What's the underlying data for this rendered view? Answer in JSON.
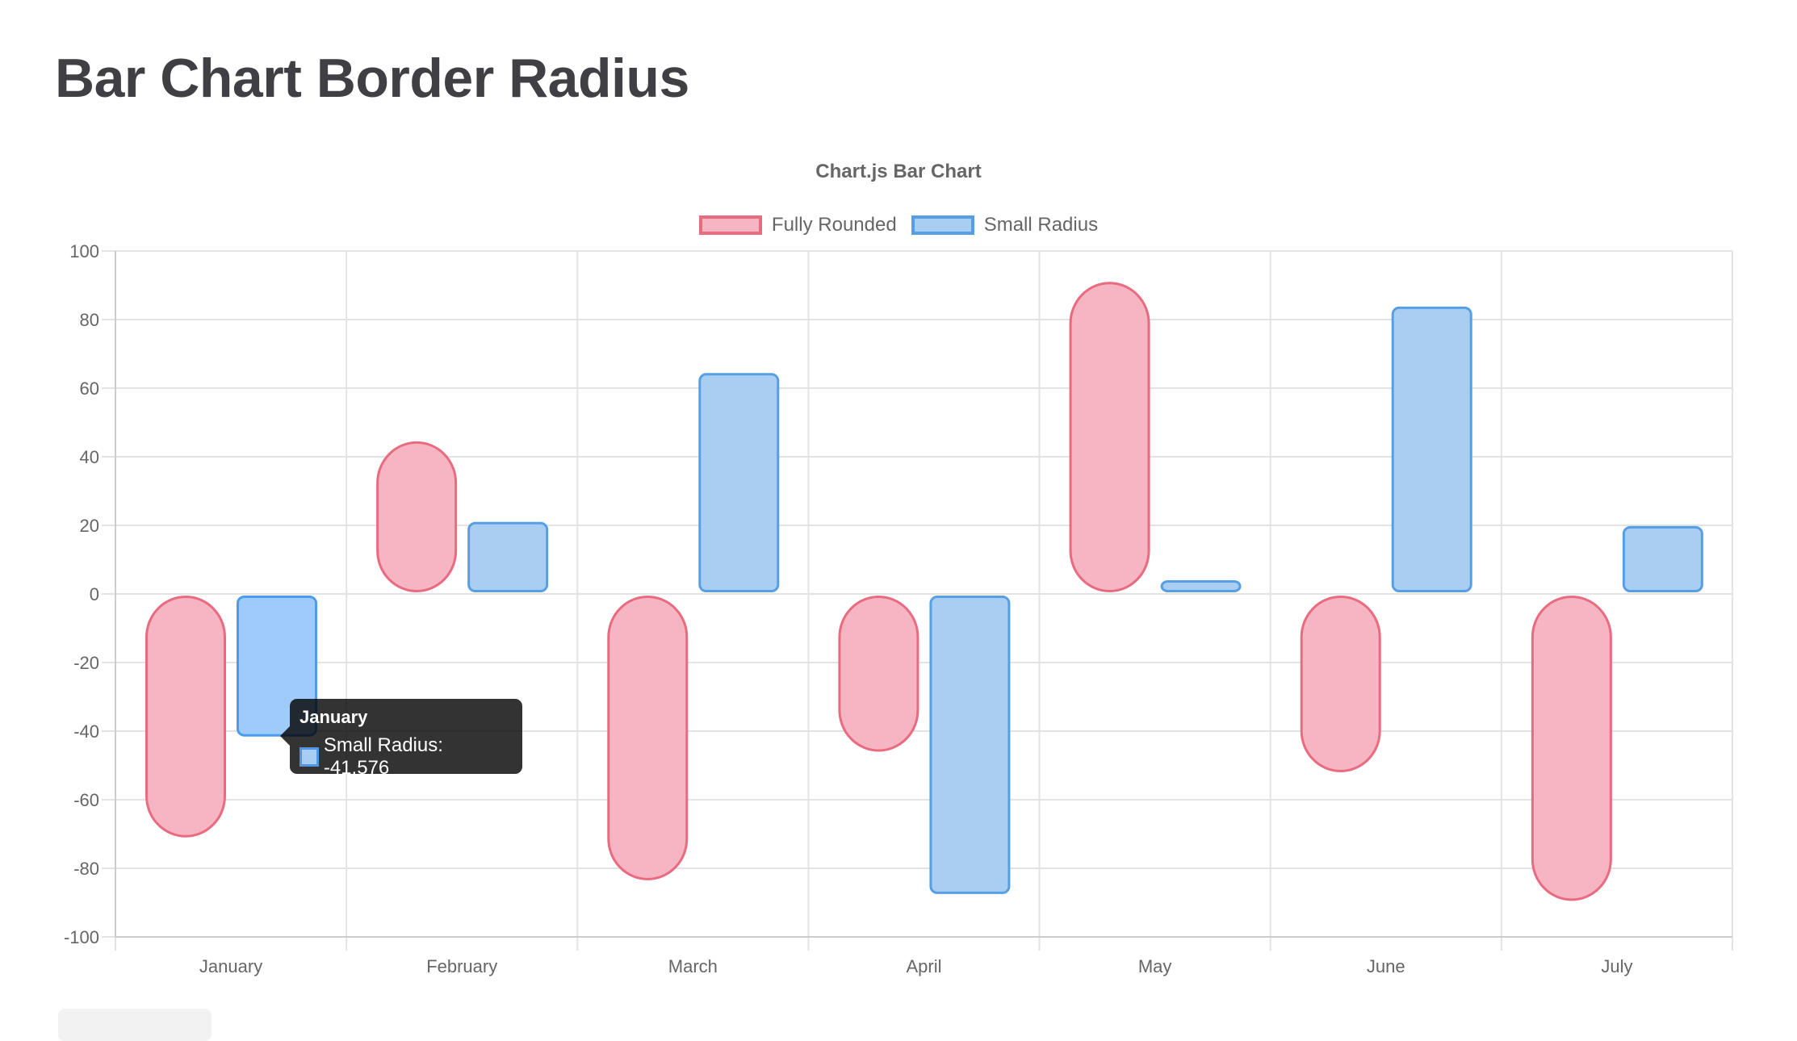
{
  "page": {
    "title": "Bar Chart Border Radius"
  },
  "chart_data": {
    "type": "bar",
    "title": "Chart.js Bar Chart",
    "categories": [
      "January",
      "February",
      "March",
      "April",
      "May",
      "June",
      "July"
    ],
    "series": [
      {
        "name": "Fully Rounded",
        "values": [
          -71,
          44.5,
          -83.5,
          -46,
          91,
          -52,
          -89.5
        ],
        "border_color": "#ea6a80",
        "fill_color": "#f6b5c2",
        "border_radius": "full"
      },
      {
        "name": "Small Radius",
        "values": [
          -41.576,
          21,
          64.4,
          -87.5,
          4,
          83.8,
          19.8
        ],
        "border_color": "#569fe4",
        "fill_color": "#aacef2",
        "border_radius": "small"
      }
    ],
    "xlabel": "",
    "ylabel": "",
    "ylim": [
      -100,
      100
    ],
    "yticks": [
      100,
      80,
      60,
      40,
      20,
      0,
      -20,
      -40,
      -60,
      -80,
      -100
    ],
    "grid": true,
    "legend_position": "top"
  },
  "legend": {
    "items": [
      {
        "label": "Fully Rounded",
        "border": "#ea6a80",
        "fill": "#f6b5c2"
      },
      {
        "label": "Small Radius",
        "border": "#569fe4",
        "fill": "#aacef2"
      }
    ]
  },
  "tooltip": {
    "title": "January",
    "body": "Small Radius: -41.576",
    "swatch_border": "#4f97e0",
    "swatch_fill": "#a8ccf2"
  },
  "colors": {
    "grid": "#e3e3e3",
    "axis": "#cccccc",
    "text": "#666666",
    "hover_fill": "#9ecbf9",
    "hover_border": "#4a9cf0"
  }
}
